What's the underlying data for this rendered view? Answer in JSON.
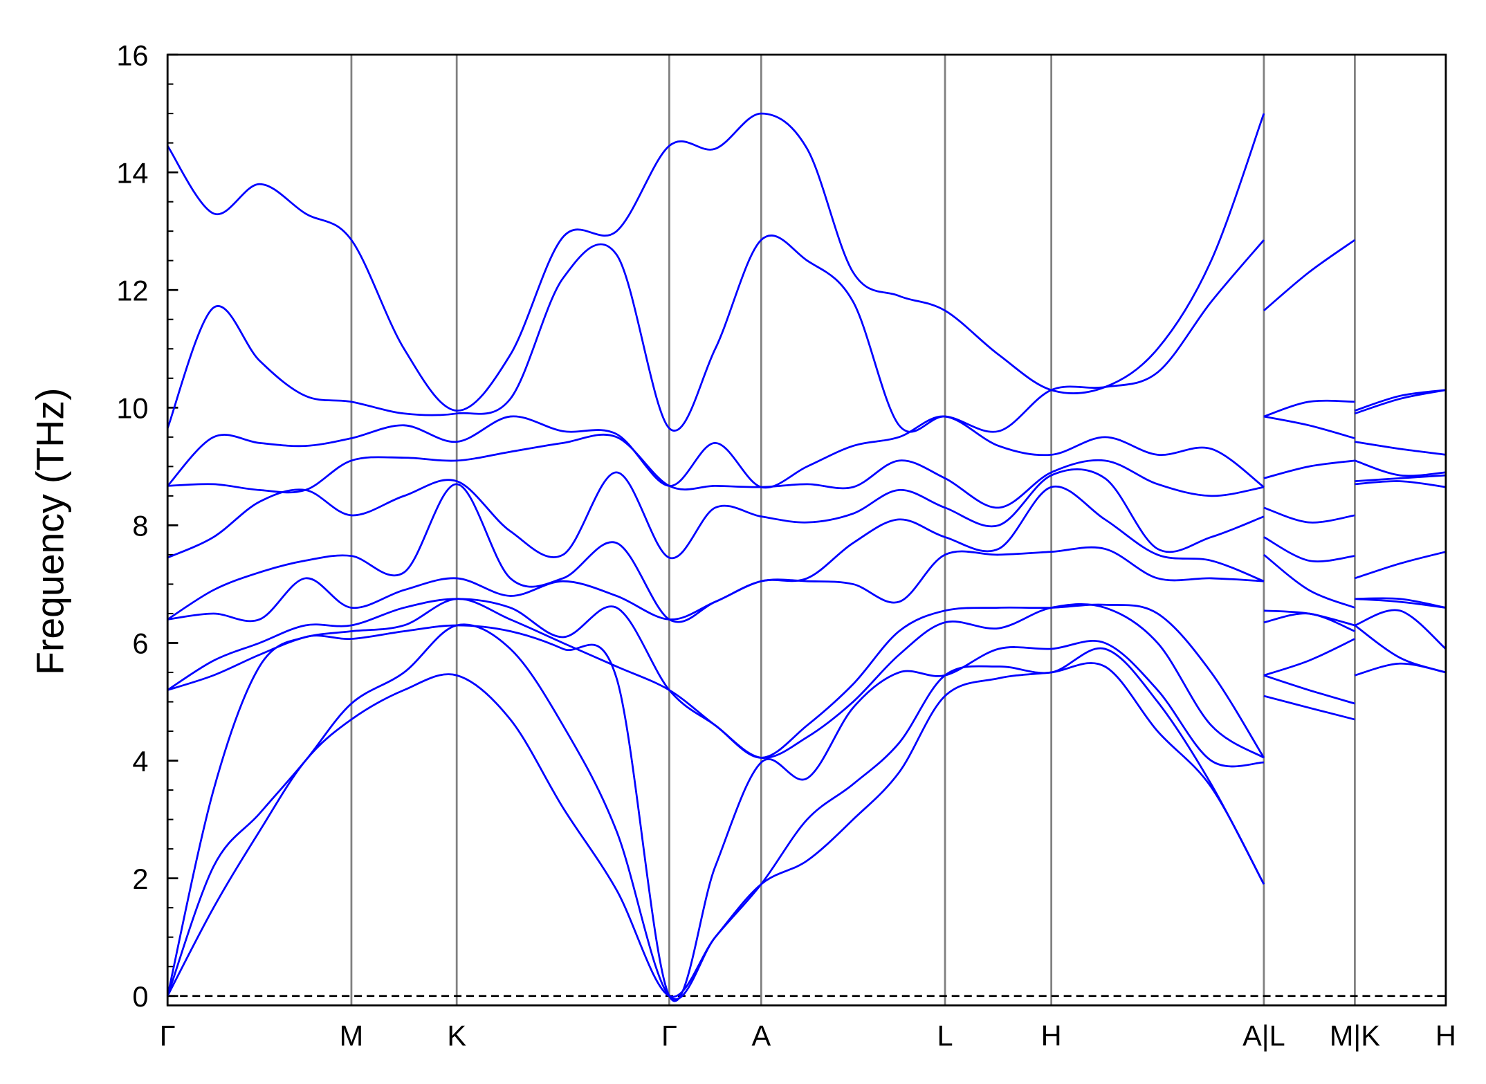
{
  "chart_data": {
    "type": "line",
    "ylabel": "Frequency (THz)",
    "color": "#0000ff",
    "xgrid": true,
    "zero_line": true,
    "xlim": [
      0,
      1335
    ],
    "ylim": [
      -0.16,
      16
    ],
    "yticks": [
      0,
      2,
      4,
      6,
      8,
      10,
      12,
      14,
      16
    ],
    "yminorticks": [
      0.5,
      1,
      1.5,
      2.5,
      3,
      3.5,
      4.5,
      5,
      5.5,
      6.5,
      7,
      7.5,
      8.5,
      9,
      9.5,
      10.5,
      11,
      11.5,
      12.5,
      13,
      13.5,
      14.5,
      15,
      15.5
    ],
    "xticks": [
      {
        "value": 0,
        "label": "Γ"
      },
      {
        "value": 192,
        "label": "M"
      },
      {
        "value": 302,
        "label": "K"
      },
      {
        "value": 524,
        "label": "Γ"
      },
      {
        "value": 620,
        "label": "A"
      },
      {
        "value": 812,
        "label": "L"
      },
      {
        "value": 923,
        "label": "H"
      },
      {
        "value": 1145,
        "label": "A|L"
      },
      {
        "value": 1240,
        "label": "M|K"
      },
      {
        "value": 1335,
        "label": "H"
      }
    ],
    "x": [
      0,
      48,
      96,
      144,
      192,
      247,
      302,
      358,
      413,
      469,
      524,
      572,
      620,
      668,
      716,
      764,
      812,
      868,
      923,
      979,
      1034,
      1090,
      1145,
      1145,
      1145,
      1192,
      1240,
      1240,
      1240,
      1287,
      1335
    ],
    "series": [
      {
        "values": [
          0,
          1.5,
          2.8,
          4.0,
          4.7,
          5.2,
          5.45,
          4.7,
          3.2,
          1.8,
          0,
          1.0,
          1.9,
          2.3,
          3.0,
          3.8,
          5.1,
          5.4,
          5.5,
          5.6,
          4.5,
          3.55,
          1.9,
          null,
          5.1,
          4.9,
          4.7,
          null,
          5.45,
          5.65,
          5.5
        ]
      },
      {
        "values": [
          0,
          2.2,
          3.1,
          4.0,
          4.97,
          5.5,
          6.3,
          5.9,
          4.6,
          2.8,
          0,
          1.0,
          1.9,
          3.0,
          3.6,
          4.3,
          5.45,
          5.6,
          5.5,
          5.9,
          5.0,
          3.6,
          1.9,
          null,
          5.45,
          5.2,
          4.97,
          null,
          6.3,
          5.75,
          5.5
        ]
      },
      {
        "values": [
          0,
          3.5,
          5.6,
          6.1,
          6.07,
          6.2,
          6.3,
          6.2,
          5.9,
          5.4,
          0,
          2.2,
          3.97,
          3.7,
          4.9,
          5.5,
          5.45,
          5.9,
          5.9,
          6.0,
          5.2,
          4.0,
          3.97,
          null,
          5.45,
          5.7,
          6.07,
          null,
          6.3,
          6.55,
          5.9
        ]
      },
      {
        "values": [
          5.2,
          5.45,
          5.8,
          6.1,
          6.2,
          6.3,
          6.75,
          6.4,
          6.0,
          5.6,
          5.2,
          4.6,
          4.05,
          4.4,
          5.0,
          5.8,
          6.35,
          6.25,
          6.6,
          6.6,
          6.0,
          4.6,
          4.05,
          null,
          6.35,
          6.5,
          6.2,
          null,
          6.75,
          6.7,
          6.6
        ]
      },
      {
        "values": [
          5.2,
          5.7,
          6.0,
          6.3,
          6.3,
          6.6,
          6.75,
          6.6,
          6.1,
          6.6,
          5.2,
          4.6,
          4.05,
          4.6,
          5.3,
          6.2,
          6.55,
          6.6,
          6.6,
          6.65,
          6.5,
          5.5,
          4.05,
          null,
          6.55,
          6.5,
          6.3,
          null,
          6.75,
          6.75,
          6.6
        ]
      },
      {
        "values": [
          6.4,
          6.5,
          6.4,
          7.1,
          6.6,
          6.9,
          7.1,
          6.8,
          7.05,
          6.8,
          6.4,
          6.7,
          7.05,
          7.05,
          7.0,
          6.7,
          7.5,
          7.5,
          7.55,
          7.6,
          7.1,
          7.1,
          7.05,
          null,
          7.5,
          6.9,
          6.6,
          null,
          7.1,
          7.35,
          7.55
        ]
      },
      {
        "values": [
          6.4,
          6.9,
          7.2,
          7.4,
          7.48,
          7.2,
          8.7,
          7.1,
          7.1,
          7.7,
          6.4,
          6.7,
          7.05,
          7.1,
          7.7,
          8.1,
          7.8,
          7.6,
          8.65,
          8.1,
          7.5,
          7.4,
          7.05,
          null,
          7.8,
          7.4,
          7.48,
          null,
          8.7,
          8.75,
          8.65
        ]
      },
      {
        "values": [
          7.45,
          7.8,
          8.4,
          8.6,
          8.17,
          8.5,
          8.75,
          7.9,
          7.5,
          8.9,
          7.45,
          8.3,
          8.15,
          8.05,
          8.2,
          8.6,
          8.3,
          8.0,
          8.85,
          8.8,
          7.6,
          7.8,
          8.15,
          null,
          8.3,
          8.05,
          8.17,
          null,
          8.75,
          8.8,
          8.85
        ]
      },
      {
        "values": [
          8.67,
          8.7,
          8.6,
          8.6,
          9.1,
          9.15,
          9.1,
          9.25,
          9.4,
          9.5,
          8.67,
          8.67,
          8.65,
          8.7,
          8.65,
          9.1,
          8.8,
          8.3,
          8.9,
          9.1,
          8.7,
          8.5,
          8.65,
          null,
          8.8,
          9.0,
          9.1,
          null,
          9.1,
          8.85,
          8.9
        ]
      },
      {
        "values": [
          8.67,
          9.5,
          9.4,
          9.35,
          9.48,
          9.7,
          9.42,
          9.85,
          9.6,
          9.55,
          8.67,
          9.4,
          8.65,
          9.0,
          9.35,
          9.5,
          9.85,
          9.35,
          9.2,
          9.5,
          9.2,
          9.3,
          8.65,
          null,
          9.85,
          9.7,
          9.48,
          null,
          9.42,
          9.3,
          9.2
        ]
      },
      {
        "values": [
          9.65,
          11.7,
          10.8,
          10.2,
          10.1,
          9.9,
          9.9,
          10.15,
          12.2,
          12.6,
          9.65,
          11.0,
          12.85,
          12.5,
          11.8,
          9.7,
          9.85,
          9.6,
          10.3,
          10.35,
          10.6,
          11.8,
          12.85,
          null,
          9.85,
          10.1,
          10.1,
          null,
          9.9,
          10.15,
          10.3
        ]
      },
      {
        "values": [
          14.45,
          13.3,
          13.8,
          13.3,
          12.85,
          11.0,
          9.95,
          10.9,
          12.9,
          13.0,
          14.45,
          14.4,
          15.0,
          14.4,
          12.3,
          11.9,
          11.65,
          10.9,
          10.3,
          10.35,
          11.0,
          12.5,
          15.0,
          null,
          11.65,
          12.3,
          12.85,
          null,
          9.95,
          10.2,
          10.3
        ]
      }
    ]
  }
}
